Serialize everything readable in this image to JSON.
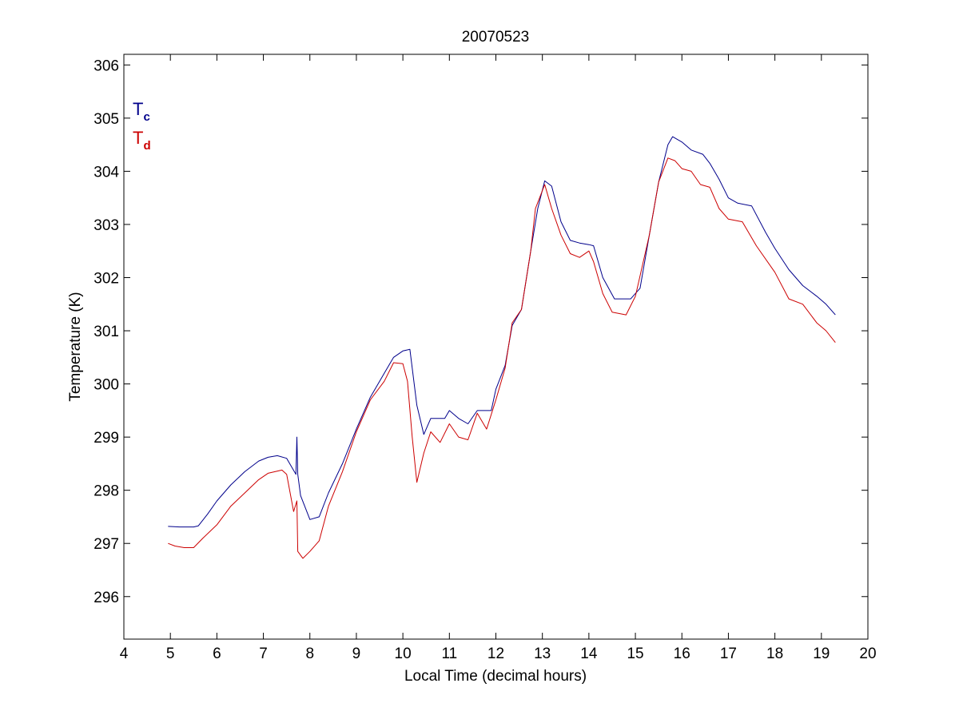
{
  "chart_data": {
    "type": "line",
    "title": "20070523",
    "xlabel": "Local Time (decimal hours)",
    "ylabel": "Temperature (K)",
    "xlim": [
      4,
      20
    ],
    "ylim": [
      295.2,
      306.2
    ],
    "xticks": [
      4,
      5,
      6,
      7,
      8,
      9,
      10,
      11,
      12,
      13,
      14,
      15,
      16,
      17,
      18,
      19,
      20
    ],
    "yticks": [
      296,
      297,
      298,
      299,
      300,
      301,
      302,
      303,
      304,
      305,
      306
    ],
    "grid": false,
    "legend_placement": "top-left",
    "series": [
      {
        "name_main": "T",
        "name_sub": "c",
        "color": "#00008b",
        "points": [
          [
            4.95,
            297.32
          ],
          [
            5.2,
            297.31
          ],
          [
            5.5,
            297.31
          ],
          [
            5.6,
            297.33
          ],
          [
            5.8,
            297.55
          ],
          [
            6.0,
            297.8
          ],
          [
            6.3,
            298.1
          ],
          [
            6.6,
            298.35
          ],
          [
            6.9,
            298.55
          ],
          [
            7.1,
            298.62
          ],
          [
            7.3,
            298.65
          ],
          [
            7.5,
            298.6
          ],
          [
            7.7,
            298.3
          ],
          [
            7.72,
            299.0
          ],
          [
            7.74,
            298.3
          ],
          [
            7.8,
            297.9
          ],
          [
            8.0,
            297.45
          ],
          [
            8.2,
            297.5
          ],
          [
            8.4,
            297.95
          ],
          [
            8.7,
            298.5
          ],
          [
            9.0,
            299.15
          ],
          [
            9.3,
            299.75
          ],
          [
            9.6,
            300.2
          ],
          [
            9.8,
            300.5
          ],
          [
            10.0,
            300.62
          ],
          [
            10.15,
            300.65
          ],
          [
            10.3,
            299.6
          ],
          [
            10.45,
            299.05
          ],
          [
            10.6,
            299.35
          ],
          [
            10.9,
            299.35
          ],
          [
            11.0,
            299.5
          ],
          [
            11.2,
            299.35
          ],
          [
            11.4,
            299.25
          ],
          [
            11.6,
            299.5
          ],
          [
            11.9,
            299.5
          ],
          [
            12.0,
            299.9
          ],
          [
            12.2,
            300.35
          ],
          [
            12.35,
            301.1
          ],
          [
            12.55,
            301.4
          ],
          [
            12.75,
            302.5
          ],
          [
            12.9,
            303.3
          ],
          [
            13.05,
            303.82
          ],
          [
            13.2,
            303.72
          ],
          [
            13.4,
            303.05
          ],
          [
            13.6,
            302.7
          ],
          [
            13.8,
            302.65
          ],
          [
            14.0,
            302.62
          ],
          [
            14.1,
            302.6
          ],
          [
            14.3,
            302.0
          ],
          [
            14.55,
            301.6
          ],
          [
            14.9,
            301.6
          ],
          [
            15.1,
            301.8
          ],
          [
            15.3,
            302.8
          ],
          [
            15.5,
            303.8
          ],
          [
            15.7,
            304.5
          ],
          [
            15.8,
            304.65
          ],
          [
            16.0,
            304.55
          ],
          [
            16.2,
            304.4
          ],
          [
            16.45,
            304.32
          ],
          [
            16.6,
            304.15
          ],
          [
            16.8,
            303.85
          ],
          [
            17.0,
            303.5
          ],
          [
            17.2,
            303.4
          ],
          [
            17.5,
            303.35
          ],
          [
            17.8,
            302.85
          ],
          [
            18.0,
            302.55
          ],
          [
            18.3,
            302.15
          ],
          [
            18.6,
            301.85
          ],
          [
            18.9,
            301.65
          ],
          [
            19.1,
            301.5
          ],
          [
            19.3,
            301.3
          ]
        ]
      },
      {
        "name_main": "T",
        "name_sub": "d",
        "color": "#cc0000",
        "points": [
          [
            4.95,
            297.0
          ],
          [
            5.1,
            296.95
          ],
          [
            5.3,
            296.92
          ],
          [
            5.5,
            296.92
          ],
          [
            5.7,
            297.1
          ],
          [
            6.0,
            297.35
          ],
          [
            6.3,
            297.7
          ],
          [
            6.6,
            297.95
          ],
          [
            6.9,
            298.2
          ],
          [
            7.1,
            298.32
          ],
          [
            7.4,
            298.38
          ],
          [
            7.5,
            298.3
          ],
          [
            7.65,
            297.6
          ],
          [
            7.72,
            297.8
          ],
          [
            7.74,
            296.85
          ],
          [
            7.85,
            296.72
          ],
          [
            8.0,
            296.85
          ],
          [
            8.2,
            297.05
          ],
          [
            8.4,
            297.7
          ],
          [
            8.7,
            298.35
          ],
          [
            9.0,
            299.1
          ],
          [
            9.3,
            299.7
          ],
          [
            9.6,
            300.05
          ],
          [
            9.8,
            300.4
          ],
          [
            10.0,
            300.38
          ],
          [
            10.1,
            300.05
          ],
          [
            10.2,
            299.0
          ],
          [
            10.3,
            298.15
          ],
          [
            10.45,
            298.7
          ],
          [
            10.6,
            299.1
          ],
          [
            10.8,
            298.9
          ],
          [
            11.0,
            299.25
          ],
          [
            11.2,
            299.0
          ],
          [
            11.4,
            298.95
          ],
          [
            11.6,
            299.45
          ],
          [
            11.8,
            299.15
          ],
          [
            12.0,
            299.7
          ],
          [
            12.2,
            300.3
          ],
          [
            12.35,
            301.15
          ],
          [
            12.55,
            301.4
          ],
          [
            12.75,
            302.5
          ],
          [
            12.85,
            303.3
          ],
          [
            13.05,
            303.75
          ],
          [
            13.2,
            303.3
          ],
          [
            13.4,
            302.8
          ],
          [
            13.6,
            302.45
          ],
          [
            13.8,
            302.38
          ],
          [
            14.0,
            302.5
          ],
          [
            14.1,
            302.3
          ],
          [
            14.3,
            301.7
          ],
          [
            14.5,
            301.35
          ],
          [
            14.8,
            301.3
          ],
          [
            15.0,
            301.65
          ],
          [
            15.3,
            302.8
          ],
          [
            15.5,
            303.8
          ],
          [
            15.7,
            304.25
          ],
          [
            15.85,
            304.2
          ],
          [
            16.0,
            304.05
          ],
          [
            16.2,
            304.0
          ],
          [
            16.4,
            303.75
          ],
          [
            16.6,
            303.7
          ],
          [
            16.8,
            303.3
          ],
          [
            17.0,
            303.1
          ],
          [
            17.3,
            303.05
          ],
          [
            17.6,
            302.6
          ],
          [
            18.0,
            302.1
          ],
          [
            18.3,
            301.6
          ],
          [
            18.6,
            301.5
          ],
          [
            18.9,
            301.15
          ],
          [
            19.1,
            301.0
          ],
          [
            19.3,
            300.78
          ]
        ]
      }
    ]
  }
}
